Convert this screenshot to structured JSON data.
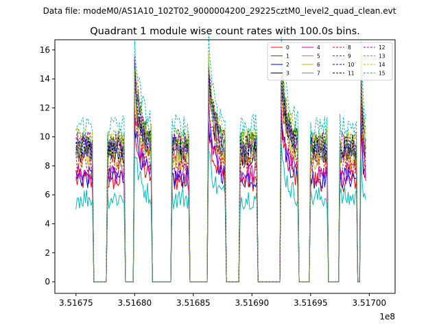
{
  "chart_data": {
    "type": "line",
    "suptitle": "Data file: modeM0/AS1A10_102T02_9000004200_29225cztM0_level2_quad_clean.evt",
    "title": "Quadrant 1 module wise count rates with 100.0s bins.",
    "xlabel": "",
    "ylabel": "",
    "x_offset_label": "1e8",
    "xlim": [
      3.516732,
      3.517022
    ],
    "ylim": [
      -0.8,
      16.7
    ],
    "x_ticks": [
      3.51675,
      3.5168,
      3.51685,
      3.5169,
      3.51695,
      3.517
    ],
    "x_tick_labels": [
      "3.51675",
      "3.51680",
      "3.51685",
      "3.51690",
      "3.51695",
      "3.51700"
    ],
    "y_ticks": [
      0,
      2,
      4,
      6,
      8,
      10,
      12,
      14,
      16
    ],
    "y_tick_labels": [
      "0",
      "2",
      "4",
      "6",
      "8",
      "10",
      "12",
      "14",
      "16"
    ],
    "grid": false,
    "legend_position": "top-right",
    "segments": [
      {
        "start": 3.51675,
        "end": 3.516764,
        "peak": false
      },
      {
        "start": 3.516777,
        "end": 3.516791,
        "peak": false
      },
      {
        "start": 3.5168,
        "end": 3.516814,
        "peak": true
      },
      {
        "start": 3.516832,
        "end": 3.516846,
        "peak": false
      },
      {
        "start": 3.516863,
        "end": 3.516877,
        "peak": true
      },
      {
        "start": 3.51689,
        "end": 3.516904,
        "peak": false
      },
      {
        "start": 3.516925,
        "end": 3.516939,
        "peak": true
      },
      {
        "start": 3.51695,
        "end": 3.516964,
        "peak": false
      },
      {
        "start": 3.516975,
        "end": 3.516989,
        "peak": false
      },
      {
        "start": 3.516993,
        "end": 3.516997,
        "peak": true
      }
    ],
    "series": [
      {
        "name": "0",
        "color": "#ff0000",
        "style": "solid",
        "level": 7.0
      },
      {
        "name": "1",
        "color": "#008000",
        "style": "solid",
        "level": 9.5
      },
      {
        "name": "2",
        "color": "#0000ff",
        "style": "solid",
        "level": 7.2
      },
      {
        "name": "3",
        "color": "#000000",
        "style": "solid",
        "level": 8.8
      },
      {
        "name": "4",
        "color": "#bf00bf",
        "style": "solid",
        "level": 7.5
      },
      {
        "name": "5",
        "color": "#00bfbf",
        "style": "solid",
        "level": 5.8
      },
      {
        "name": "6",
        "color": "#bfbf00",
        "style": "solid",
        "level": 8.5
      },
      {
        "name": "7",
        "color": "#808080",
        "style": "solid",
        "level": 9.0
      },
      {
        "name": "8",
        "color": "#ff0000",
        "style": "dashed",
        "level": 8.2
      },
      {
        "name": "9",
        "color": "#008000",
        "style": "dashed",
        "level": 9.8
      },
      {
        "name": "10",
        "color": "#0000ff",
        "style": "dashed",
        "level": 9.2
      },
      {
        "name": "11",
        "color": "#000000",
        "style": "dashed",
        "level": 9.4
      },
      {
        "name": "12",
        "color": "#bf00bf",
        "style": "dashed",
        "level": 9.6
      },
      {
        "name": "13",
        "color": "#00bfbf",
        "style": "dashed",
        "level": 10.8
      },
      {
        "name": "14",
        "color": "#bfbf00",
        "style": "dashed",
        "level": 9.9
      },
      {
        "name": "15",
        "color": "#808080",
        "style": "dashed",
        "level": 8.9
      }
    ]
  }
}
